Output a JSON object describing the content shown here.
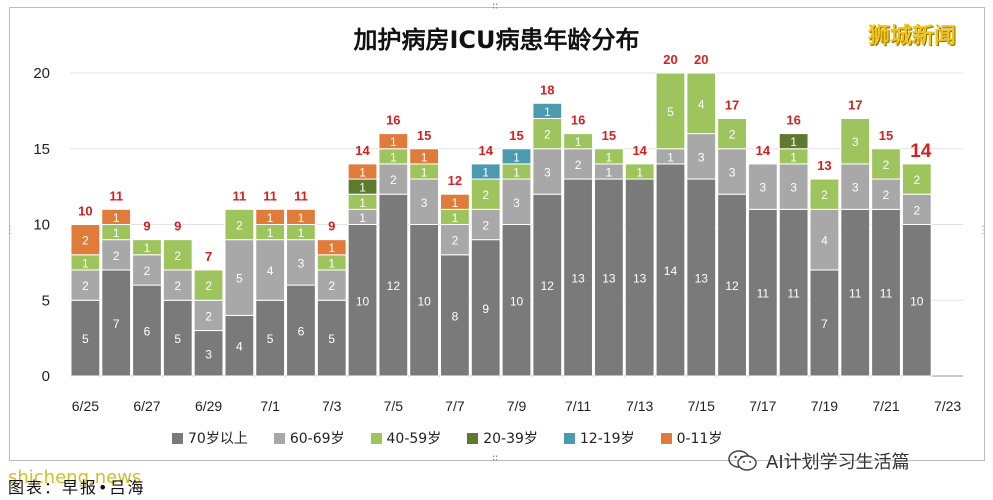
{
  "brand": "狮城新闻",
  "watermark": "shicheng.news",
  "credit": "图表：早报•吕海",
  "wechat_account": "AI计划学习生活篇",
  "icons": [
    "wechat-logo-icon"
  ],
  "colors": {
    "70plus": "#7a7a7a",
    "60to69": "#a8a8a8",
    "40to59": "#9ec45e",
    "20to39": "#5d7a2e",
    "12to19": "#4a9bae",
    "0to11": "#e07b39",
    "total_label": "#d62020",
    "brand": "#f0c419"
  },
  "chart_data": {
    "type": "bar",
    "stacked": true,
    "title": "加护病房ICU病患年龄分布",
    "ylim": [
      0,
      20
    ],
    "yticks": [
      "0",
      "5",
      "10",
      "15",
      "20"
    ],
    "grid": true,
    "legend_position": "bottom",
    "categories": [
      "6/25",
      "6/26",
      "6/27",
      "6/28",
      "6/29",
      "6/30",
      "7/1",
      "7/2",
      "7/3",
      "7/4",
      "7/5",
      "7/6",
      "7/7",
      "7/8",
      "7/9",
      "7/10",
      "7/11",
      "7/12",
      "7/13",
      "7/14",
      "7/15",
      "7/16",
      "7/17",
      "7/18",
      "7/19",
      "7/20",
      "7/21",
      "7/22",
      "7/23"
    ],
    "xtick_labels": [
      "6/25",
      "6/27",
      "6/29",
      "7/1",
      "7/3",
      "7/5",
      "7/7",
      "7/9",
      "7/11",
      "7/13",
      "7/15",
      "7/17",
      "7/19",
      "7/21",
      "7/23"
    ],
    "series": [
      {
        "name": "70岁以上",
        "color_key": "70plus",
        "values": [
          5,
          7,
          6,
          5,
          3,
          4,
          5,
          6,
          5,
          10,
          12,
          10,
          8,
          9,
          10,
          12,
          13,
          13,
          13,
          14,
          13,
          12,
          11,
          11,
          7,
          11,
          11,
          10,
          0
        ]
      },
      {
        "name": "60-69岁",
        "color_key": "60to69",
        "values": [
          2,
          2,
          2,
          2,
          2,
          5,
          4,
          3,
          2,
          1,
          2,
          3,
          2,
          2,
          3,
          3,
          2,
          1,
          0,
          1,
          3,
          3,
          3,
          3,
          4,
          3,
          2,
          2,
          0
        ]
      },
      {
        "name": "40-59岁",
        "color_key": "40to59",
        "values": [
          1,
          1,
          1,
          2,
          2,
          2,
          1,
          1,
          1,
          1,
          1,
          1,
          1,
          2,
          1,
          2,
          1,
          1,
          1,
          5,
          4,
          2,
          0,
          1,
          2,
          3,
          2,
          2,
          0
        ]
      },
      {
        "name": "20-39岁",
        "color_key": "20to39",
        "values": [
          0,
          0,
          0,
          0,
          0,
          0,
          0,
          0,
          0,
          1,
          0,
          0,
          0,
          0,
          0,
          0,
          0,
          0,
          0,
          0,
          0,
          0,
          0,
          1,
          0,
          0,
          0,
          0,
          0
        ]
      },
      {
        "name": "12-19岁",
        "color_key": "12to19",
        "values": [
          0,
          0,
          0,
          0,
          0,
          0,
          0,
          0,
          0,
          0,
          0,
          0,
          0,
          1,
          1,
          1,
          0,
          0,
          0,
          0,
          0,
          0,
          0,
          0,
          0,
          0,
          0,
          0,
          0
        ]
      },
      {
        "name": "0-11岁",
        "color_key": "0to11",
        "values": [
          2,
          1,
          0,
          0,
          0,
          0,
          1,
          1,
          1,
          1,
          1,
          1,
          1,
          0,
          0,
          0,
          0,
          0,
          0,
          0,
          0,
          0,
          0,
          0,
          0,
          0,
          0,
          0,
          0
        ]
      }
    ],
    "totals": [
      "10",
      "11",
      "9",
      "9",
      "7",
      "11",
      "11",
      "11",
      "9",
      "14",
      "16",
      "15",
      "12",
      "14",
      "15",
      "18",
      "16",
      "15",
      "14",
      "20",
      "20",
      "17",
      "14",
      "16",
      "13",
      "17",
      "15",
      "14",
      ""
    ],
    "highlight_index": 27
  }
}
